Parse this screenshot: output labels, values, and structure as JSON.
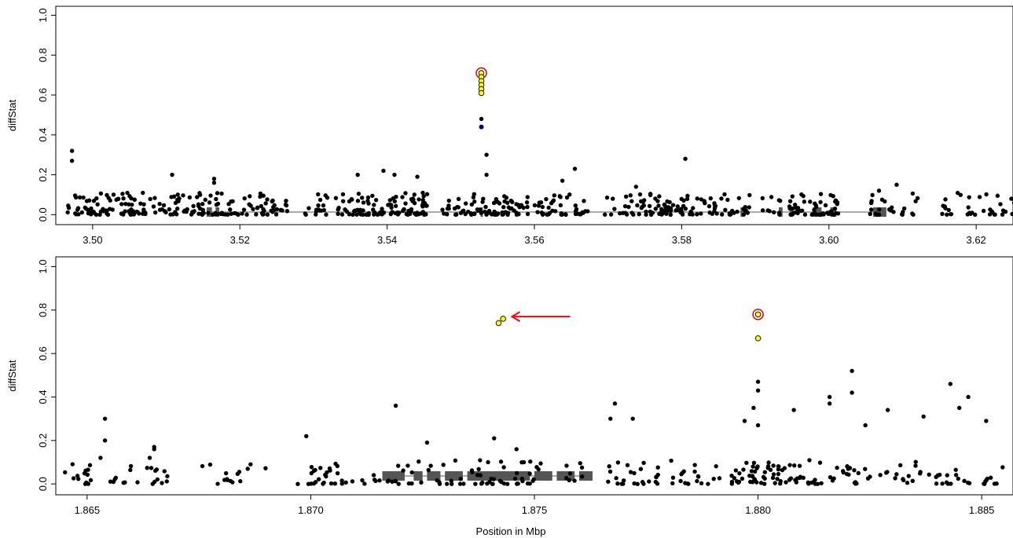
{
  "chart_data": [
    {
      "type": "scatter",
      "title": "",
      "xlabel": "",
      "ylabel": "diffStat",
      "xlim": [
        3.495,
        3.625
      ],
      "ylim": [
        -0.05,
        1.0
      ],
      "xticks": [
        "3.50",
        "3.52",
        "3.54",
        "3.56",
        "3.58",
        "3.60",
        "3.62"
      ],
      "yticks": [
        "0.0",
        "0.2",
        "0.4",
        "0.6",
        "0.8",
        "1.0"
      ],
      "grid": false,
      "colors": {
        "points": "#000000",
        "highlight": "#ffff00",
        "blue": "#00008b",
        "ring": "#e00000",
        "gene": "#555555"
      },
      "highlighted": [
        {
          "x": 3.5528,
          "y": 0.71,
          "ring": true
        },
        {
          "x": 3.5528,
          "y": 0.69
        },
        {
          "x": 3.5528,
          "y": 0.67
        },
        {
          "x": 3.5528,
          "y": 0.65
        },
        {
          "x": 3.5528,
          "y": 0.63
        },
        {
          "x": 3.5528,
          "y": 0.61
        }
      ],
      "blue_points": [
        {
          "x": 3.5528,
          "y": 0.44
        }
      ],
      "outliers": [
        {
          "x": 3.4972,
          "y": 0.32
        },
        {
          "x": 3.4972,
          "y": 0.27
        },
        {
          "x": 3.5108,
          "y": 0.2
        },
        {
          "x": 3.5165,
          "y": 0.18
        },
        {
          "x": 3.5165,
          "y": 0.16
        },
        {
          "x": 3.536,
          "y": 0.2
        },
        {
          "x": 3.5395,
          "y": 0.22
        },
        {
          "x": 3.541,
          "y": 0.2
        },
        {
          "x": 3.5441,
          "y": 0.19
        },
        {
          "x": 3.5528,
          "y": 0.48
        },
        {
          "x": 3.5535,
          "y": 0.3
        },
        {
          "x": 3.5535,
          "y": 0.2
        },
        {
          "x": 3.5655,
          "y": 0.23
        },
        {
          "x": 3.5638,
          "y": 0.17
        },
        {
          "x": 3.5738,
          "y": 0.14
        },
        {
          "x": 3.5805,
          "y": 0.28
        },
        {
          "x": 3.6092,
          "y": 0.15
        },
        {
          "x": 3.6068,
          "y": 0.12
        }
      ],
      "clusters": [
        [
          3.4965,
          3.5095,
          90
        ],
        [
          3.5095,
          3.5165,
          45
        ],
        [
          3.5165,
          3.5265,
          60
        ],
        [
          3.5285,
          3.5345,
          25
        ],
        [
          3.5345,
          3.5395,
          40
        ],
        [
          3.5395,
          3.5455,
          55
        ],
        [
          3.5475,
          3.5555,
          50
        ],
        [
          3.5555,
          3.5675,
          75
        ],
        [
          3.5695,
          3.5745,
          20
        ],
        [
          3.5745,
          3.5805,
          50
        ],
        [
          3.5805,
          3.5895,
          45
        ],
        [
          3.5905,
          3.5935,
          10
        ],
        [
          3.5945,
          3.6015,
          55
        ],
        [
          3.6055,
          3.6125,
          25
        ],
        [
          3.6145,
          3.6255,
          40
        ]
      ],
      "gene": {
        "range": [
          3.5155,
          3.6078
        ],
        "exons": [
          [
            3.5155,
            3.5162
          ],
          [
            3.5167,
            3.5172
          ],
          [
            3.5527,
            3.553
          ],
          [
            3.5783,
            3.5787
          ],
          [
            3.588,
            3.5883
          ],
          [
            3.5932,
            3.5937
          ],
          [
            3.5947,
            3.5951
          ],
          [
            3.5978,
            3.599
          ],
          [
            3.6002,
            3.601
          ],
          [
            3.606,
            3.6078
          ]
        ]
      }
    },
    {
      "type": "scatter",
      "title": "",
      "xlabel": "Position in Mbp",
      "ylabel": "diffStat",
      "xlim": [
        1.8643,
        1.8857
      ],
      "ylim": [
        -0.05,
        1.0
      ],
      "xticks": [
        "1.865",
        "1.870",
        "1.875",
        "1.880",
        "1.885"
      ],
      "yticks": [
        "0.0",
        "0.2",
        "0.4",
        "0.6",
        "0.8",
        "1.0"
      ],
      "grid": false,
      "colors": {
        "points": "#000000",
        "highlight": "#ffff00",
        "ring": "#e00000",
        "arrow": "#ff0000",
        "gene": "#555555"
      },
      "highlighted": [
        {
          "x": 1.8742,
          "y": 0.74
        },
        {
          "x": 1.8743,
          "y": 0.76
        },
        {
          "x": 1.88,
          "y": 0.78,
          "ring": true
        },
        {
          "x": 1.88,
          "y": 0.67
        }
      ],
      "arrow": {
        "from": [
          1.8758,
          0.77
        ],
        "to": [
          1.8745,
          0.77
        ]
      },
      "outliers": [
        {
          "x": 1.8654,
          "y": 0.3
        },
        {
          "x": 1.8654,
          "y": 0.2
        },
        {
          "x": 1.8653,
          "y": 0.12
        },
        {
          "x": 1.8665,
          "y": 0.17
        },
        {
          "x": 1.8665,
          "y": 0.16
        },
        {
          "x": 1.8664,
          "y": 0.12
        },
        {
          "x": 1.8699,
          "y": 0.22
        },
        {
          "x": 1.8719,
          "y": 0.36
        },
        {
          "x": 1.8726,
          "y": 0.19
        },
        {
          "x": 1.8741,
          "y": 0.21
        },
        {
          "x": 1.8746,
          "y": 0.16
        },
        {
          "x": 1.8768,
          "y": 0.37
        },
        {
          "x": 1.8767,
          "y": 0.3
        },
        {
          "x": 1.8772,
          "y": 0.3
        },
        {
          "x": 1.88,
          "y": 0.47
        },
        {
          "x": 1.88,
          "y": 0.43
        },
        {
          "x": 1.8799,
          "y": 0.35
        },
        {
          "x": 1.88,
          "y": 0.27
        },
        {
          "x": 1.8797,
          "y": 0.29
        },
        {
          "x": 1.8821,
          "y": 0.52
        },
        {
          "x": 1.8821,
          "y": 0.42
        },
        {
          "x": 1.8816,
          "y": 0.4
        },
        {
          "x": 1.8816,
          "y": 0.37
        },
        {
          "x": 1.8808,
          "y": 0.34
        },
        {
          "x": 1.8843,
          "y": 0.46
        },
        {
          "x": 1.8847,
          "y": 0.4
        },
        {
          "x": 1.8829,
          "y": 0.34
        },
        {
          "x": 1.8837,
          "y": 0.31
        },
        {
          "x": 1.8845,
          "y": 0.35
        },
        {
          "x": 1.8851,
          "y": 0.29
        },
        {
          "x": 1.8824,
          "y": 0.27
        }
      ],
      "clusters": [
        [
          1.8644,
          1.8652,
          15
        ],
        [
          1.8655,
          1.8668,
          20
        ],
        [
          1.867,
          1.869,
          15
        ],
        [
          1.8697,
          1.872,
          40
        ],
        [
          1.872,
          1.8735,
          20
        ],
        [
          1.8735,
          1.8752,
          40
        ],
        [
          1.8757,
          1.8762,
          8
        ],
        [
          1.8765,
          1.8778,
          25
        ],
        [
          1.878,
          1.8792,
          20
        ],
        [
          1.8794,
          1.8803,
          35
        ],
        [
          1.8803,
          1.8822,
          50
        ],
        [
          1.8822,
          1.8838,
          20
        ],
        [
          1.8838,
          1.8855,
          25
        ]
      ],
      "gene": {
        "range": [
          1.8716,
          1.8763
        ],
        "exons": [
          [
            1.8716,
            1.8721
          ],
          [
            1.8723,
            1.8725
          ],
          [
            1.8726,
            1.8729
          ],
          [
            1.873,
            1.8734
          ],
          [
            1.8735,
            1.8737
          ],
          [
            1.8737,
            1.8749
          ],
          [
            1.875,
            1.8754
          ],
          [
            1.8755,
            1.8759
          ],
          [
            1.876,
            1.8763
          ]
        ]
      }
    }
  ]
}
